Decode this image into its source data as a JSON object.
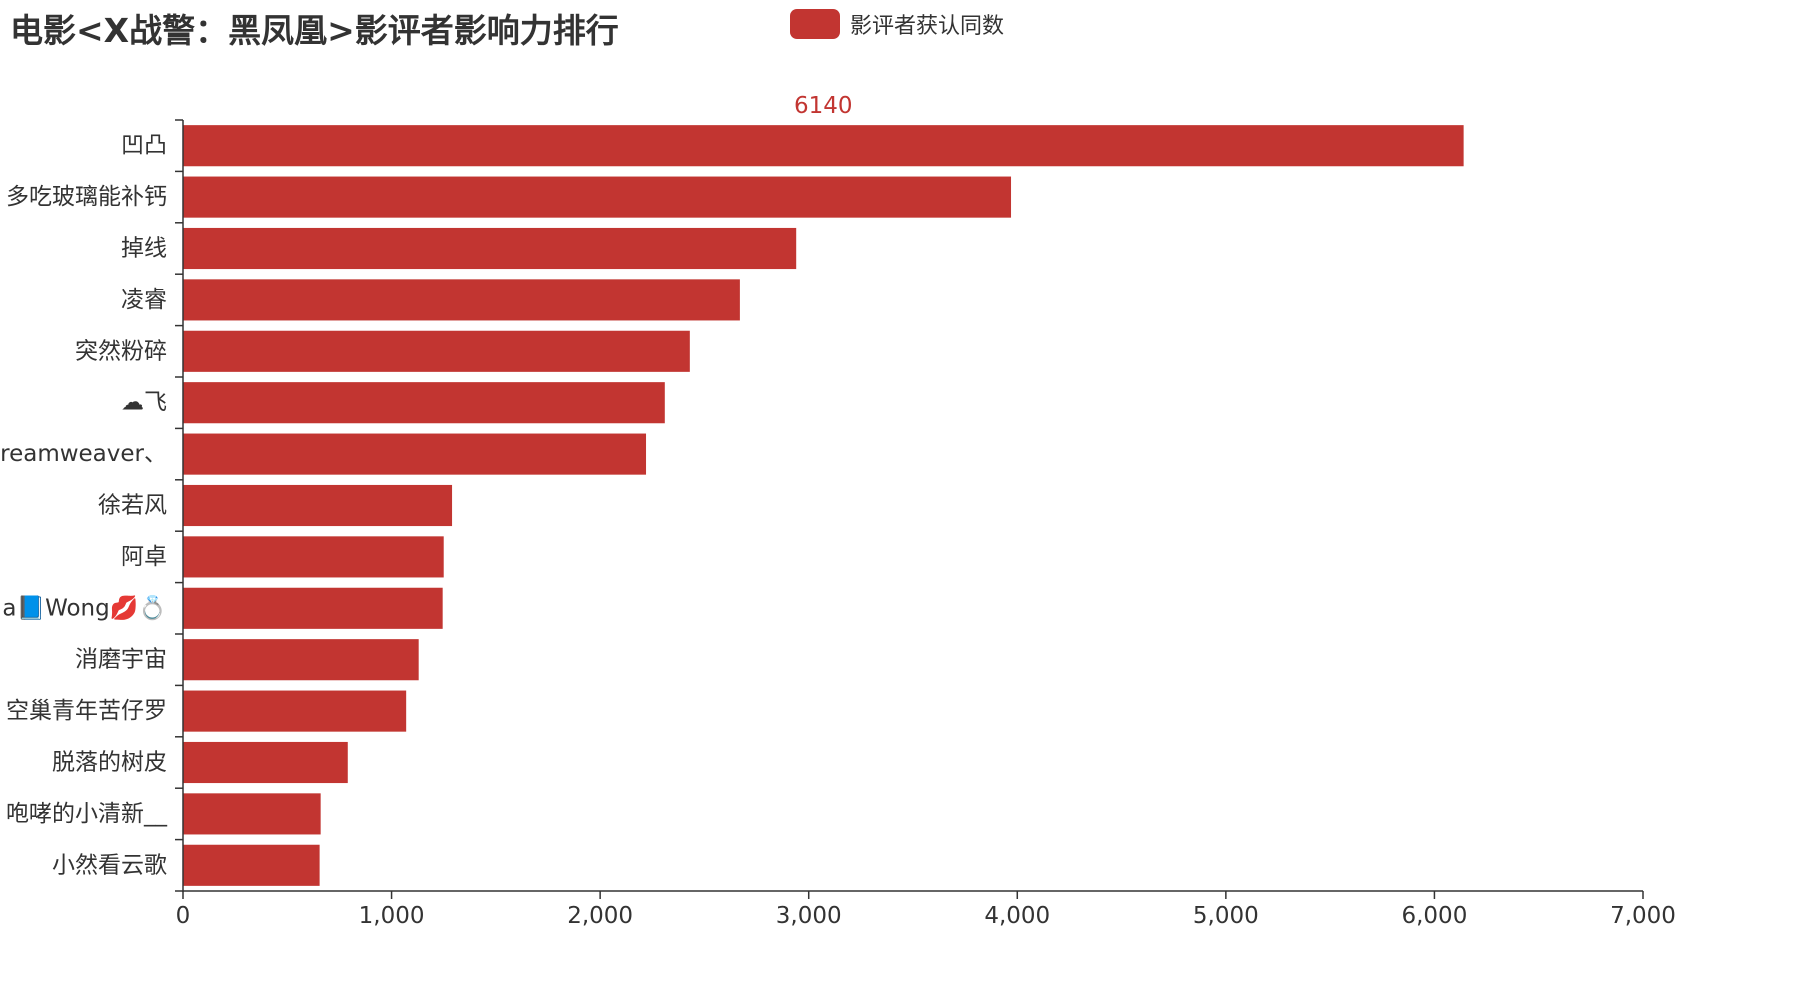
{
  "chart_data": {
    "type": "bar",
    "orientation": "horizontal",
    "title": "电影<X战警：黑凤凰>影评者影响力排行",
    "legend": {
      "label": "影评者获认同数",
      "position": "top-center"
    },
    "series": [
      {
        "name": "影评者获认同数",
        "color": "#c23531",
        "values": [
          6140,
          3970,
          2940,
          2670,
          2430,
          2310,
          2220,
          1290,
          1250,
          1245,
          1130,
          1070,
          790,
          660,
          655
        ]
      }
    ],
    "categories": [
      "凹凸",
      "多吃玻璃能补钙",
      "掉线",
      "凌睿",
      "突然粉碎",
      "☁飞",
      "reamweaver、",
      "徐若风",
      "阿卓",
      "a📘Wong💋💍",
      "消磨宇宙",
      "空巢青年苦仔罗",
      "脱落的树皮",
      "咆哮的小清新__",
      "小然看云歌"
    ],
    "data_labels": [
      {
        "index": 0,
        "text": "6140"
      }
    ],
    "xlim": [
      0,
      7000
    ],
    "xticks": [
      "0",
      "1,000",
      "2,000",
      "3,000",
      "4,000",
      "5,000",
      "6,000",
      "7,000"
    ],
    "grid": false
  }
}
